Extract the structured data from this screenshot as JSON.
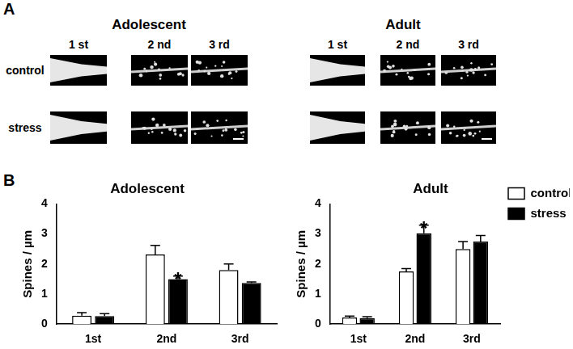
{
  "figure": {
    "panel_a": {
      "label": "A",
      "groups": [
        {
          "title": "Adolescent"
        },
        {
          "title": "Adult"
        }
      ],
      "columns": [
        "1 st",
        "2 nd",
        "3 rd"
      ],
      "rows": [
        "control",
        "stress"
      ]
    },
    "panel_b_label": "B"
  },
  "chart_data": [
    {
      "type": "bar",
      "title": "Adolescent",
      "y_label": "Spines / µm",
      "categories": [
        "1st",
        "2nd",
        "3rd"
      ],
      "ylim": [
        0,
        4
      ],
      "yticks": [
        0,
        1,
        2,
        3,
        4
      ],
      "grid": false,
      "series": [
        {
          "name": "control",
          "color": "#ffffff",
          "values": [
            0.28,
            2.32,
            1.8
          ],
          "errors": [
            0.1,
            0.3,
            0.2
          ]
        },
        {
          "name": "stress",
          "color": "#000000",
          "values": [
            0.27,
            1.5,
            1.37
          ],
          "errors": [
            0.08,
            0.1,
            0.03
          ]
        }
      ],
      "annotations": [
        {
          "text": "*",
          "category": "2nd",
          "series": "stress"
        }
      ]
    },
    {
      "type": "bar",
      "title": "Adult",
      "y_label": "Spines / µm",
      "categories": [
        "1st",
        "2nd",
        "3rd"
      ],
      "ylim": [
        0,
        4
      ],
      "yticks": [
        0,
        1,
        2,
        3,
        4
      ],
      "grid": false,
      "legend": "right",
      "series": [
        {
          "name": "control",
          "color": "#ffffff",
          "values": [
            0.22,
            1.75,
            2.5
          ],
          "errors": [
            0.05,
            0.1,
            0.25
          ]
        },
        {
          "name": "stress",
          "color": "#000000",
          "values": [
            0.2,
            3.02,
            2.75
          ],
          "errors": [
            0.05,
            0.27,
            0.2
          ]
        }
      ],
      "annotations": [
        {
          "text": "*",
          "category": "2nd",
          "series": "stress"
        }
      ]
    }
  ]
}
